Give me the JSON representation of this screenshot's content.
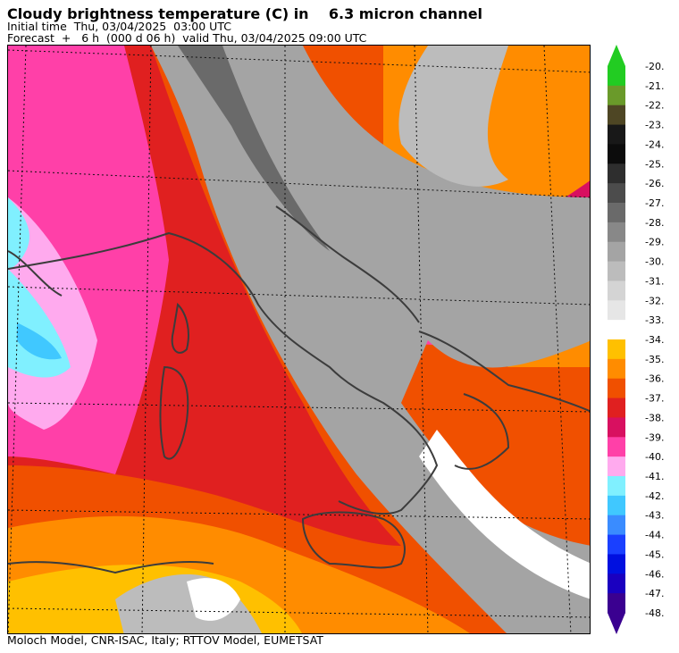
{
  "title": "Cloudy brightness temperature (C) in    6.3 micron channel",
  "initial_time": "Initial time  Thu, 03/04/2025  03:00 UTC",
  "forecast": "Forecast  +   6 h  (000 d 06 h)  valid Thu, 03/04/2025 09:00 UTC",
  "footer": "Moloch Model, CNR-ISAC, Italy; RTTOV Model, EUMETSAT",
  "colorbar": {
    "labels": [
      "-20.",
      "-21.",
      "-22.",
      "-23.",
      "-24.",
      "-25.",
      "-26.",
      "-27.",
      "-28.",
      "-29.",
      "-30.",
      "-31.",
      "-32.",
      "-33.",
      "-34.",
      "-35.",
      "-36.",
      "-37.",
      "-38.",
      "-39.",
      "-40.",
      "-41.",
      "-42.",
      "-43.",
      "-44.",
      "-45.",
      "-46.",
      "-47.",
      "-48."
    ],
    "colors": [
      "#22cc22",
      "#6a9a2a",
      "#4e4624",
      "#181818",
      "#0c0c0c",
      "#2e2e2e",
      "#4c4c4c",
      "#6a6a6a",
      "#888888",
      "#a4a4a4",
      "#bcbcbc",
      "#d4d4d4",
      "#e6e6e6",
      "#ffffff",
      "#ffc000",
      "#ff8c00",
      "#f05000",
      "#e02020",
      "#d81060",
      "#ff40a8",
      "#ffaaee",
      "#80f0ff",
      "#40c8ff",
      "#3a8cff",
      "#1a40ff",
      "#0010e0",
      "#1a00c0",
      "#3a0090"
    ]
  }
}
